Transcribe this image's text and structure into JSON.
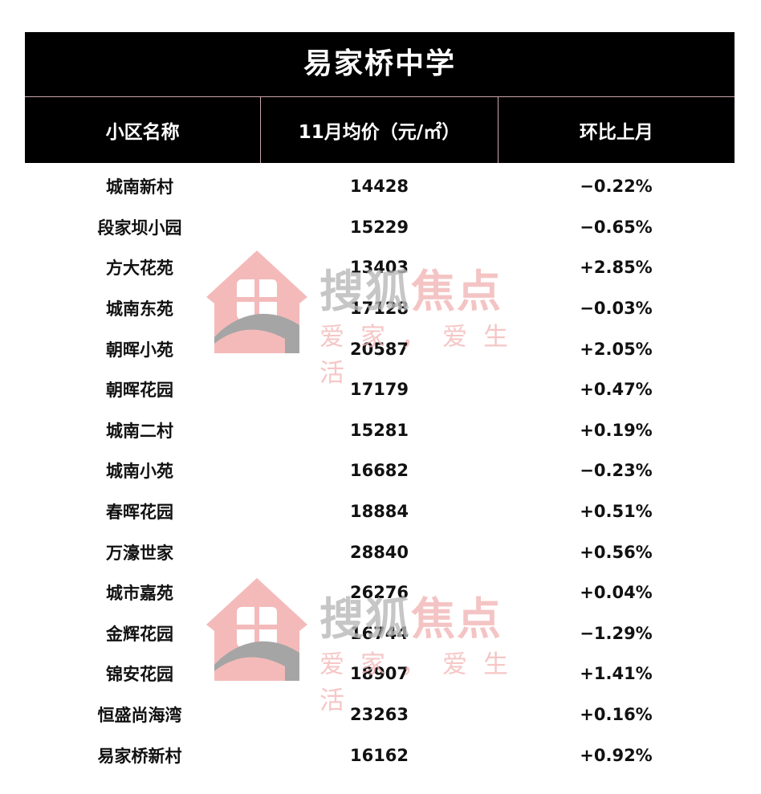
{
  "title": "易家桥中学",
  "columns": [
    "小区名称",
    "11月均价（元/㎡）",
    "环比上月"
  ],
  "rows": [
    {
      "name": "城南新村",
      "price": "14428",
      "change": "−0.22%"
    },
    {
      "name": "段家坝小园",
      "price": "15229",
      "change": "−0.65%"
    },
    {
      "name": "方大花苑",
      "price": "13403",
      "change": "+2.85%"
    },
    {
      "name": "城南东苑",
      "price": "17128",
      "change": "−0.03%"
    },
    {
      "name": "朝晖小苑",
      "price": "20587",
      "change": "+2.05%"
    },
    {
      "name": "朝晖花园",
      "price": "17179",
      "change": "+0.47%"
    },
    {
      "name": "城南二村",
      "price": "15281",
      "change": "+0.19%"
    },
    {
      "name": "城南小苑",
      "price": "16682",
      "change": "−0.23%"
    },
    {
      "name": "春晖花园",
      "price": "18884",
      "change": "+0.51%"
    },
    {
      "name": "万濠世家",
      "price": "28840",
      "change": "+0.56%"
    },
    {
      "name": "城市嘉苑",
      "price": "26276",
      "change": "+0.04%"
    },
    {
      "name": "金辉花园",
      "price": "16744",
      "change": "−1.29%"
    },
    {
      "name": "锦安花园",
      "price": "18907",
      "change": "+1.41%"
    },
    {
      "name": "恒盛尚海湾",
      "price": "23263",
      "change": "+0.16%"
    },
    {
      "name": "易家桥新村",
      "price": "16162",
      "change": "+0.92%"
    }
  ],
  "watermark": {
    "brand_a": "搜狐",
    "brand_b": "焦点",
    "slogan": "爱家，爱生活",
    "colors": {
      "pink": "#f2a9a9",
      "gray": "#8f8f8f"
    }
  }
}
